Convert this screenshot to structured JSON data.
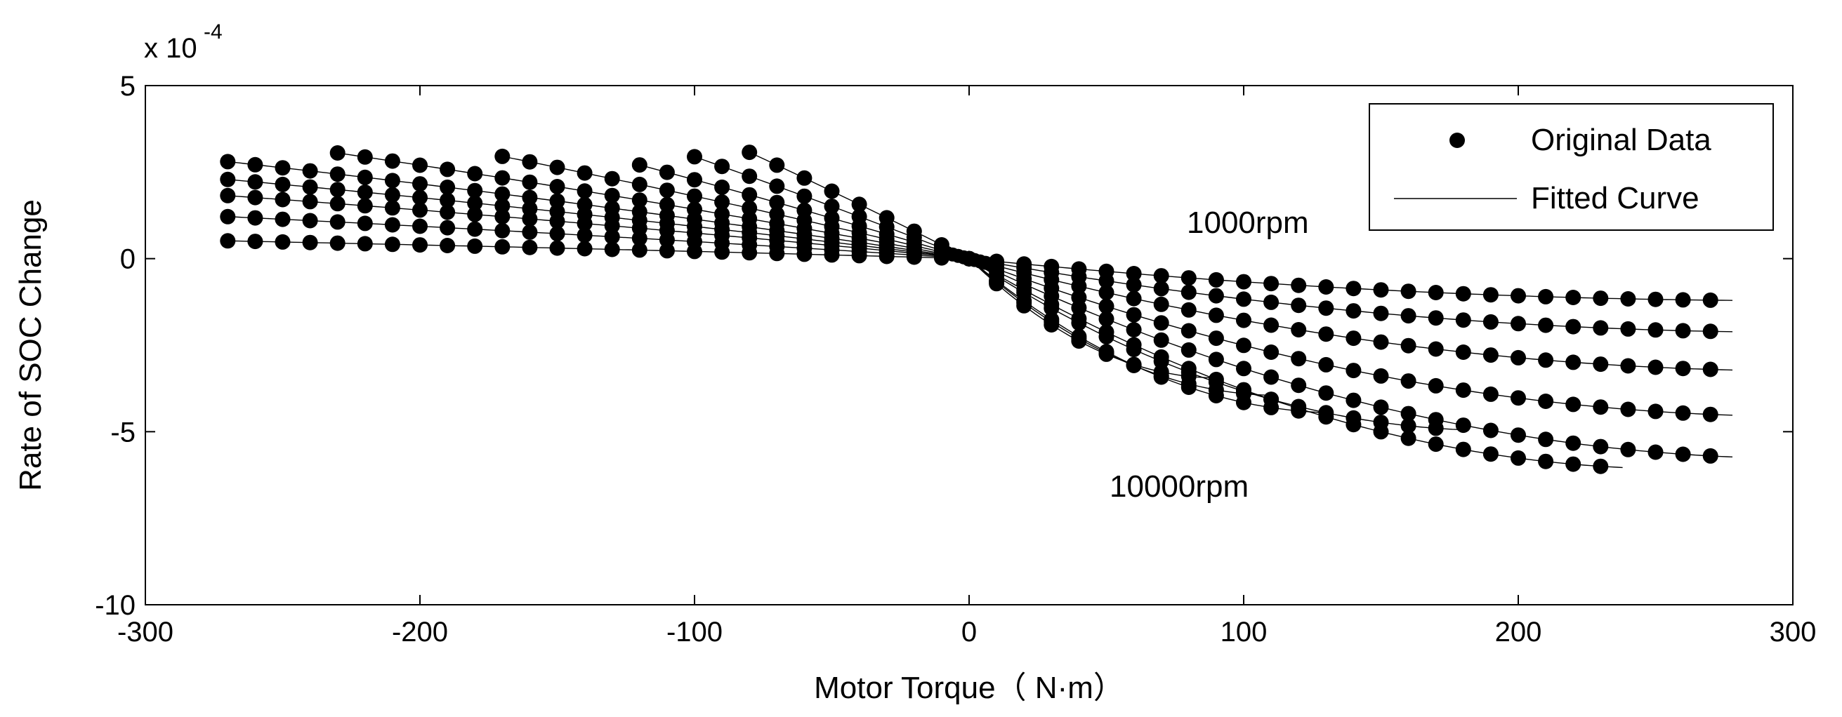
{
  "chart_data": {
    "type": "scatter",
    "xlabel": "Motor Torque（ N·m）",
    "ylabel": "Rate of SOC Change",
    "y_multiplier": "x 10",
    "y_exponent": "-4",
    "xlim": [
      -300,
      300
    ],
    "ylim": [
      -10,
      5
    ],
    "xticks": [
      -300,
      -200,
      -100,
      0,
      100,
      200,
      300
    ],
    "yticks": [
      -10,
      -5,
      0,
      5
    ],
    "xtick_labels": [
      "-300",
      "-200",
      "-100",
      "0",
      "100",
      "200",
      "300"
    ],
    "ytick_labels": [
      "-10",
      "-5",
      "0",
      "5"
    ],
    "grid": false,
    "legend": {
      "position": "top-right",
      "entries": [
        "Original Data",
        "Fitted Curve"
      ]
    },
    "annotations": [
      {
        "text": "1000rpm",
        "x": 105,
        "y": 0.9
      },
      {
        "text": "10000rpm",
        "x": 78,
        "y": -6.7
      }
    ],
    "series_style": {
      "marker": "circle",
      "fit_line": "thin"
    },
    "speed_curves": [
      {
        "k_neg": 0.0022,
        "x_min": -270,
        "x_max": 270
      },
      {
        "k_neg": 0.0052,
        "x_min": -270,
        "x_max": 270
      },
      {
        "k_neg": 0.0078,
        "x_min": -270,
        "x_max": 270
      },
      {
        "k_neg": 0.0098,
        "x_min": -270,
        "x_max": 270
      },
      {
        "k_neg": 0.012,
        "x_min": -270,
        "x_max": 270
      },
      {
        "k_neg": 0.015,
        "x_min": -230,
        "x_max": 230
      },
      {
        "k_neg": 0.019,
        "x_min": -170,
        "x_max": 170
      },
      {
        "k_neg": 0.024,
        "x_min": -120,
        "x_max": 120
      },
      {
        "k_neg": 0.031,
        "x_min": -100,
        "x_max": 100
      },
      {
        "k_neg": 0.04,
        "x_min": -80,
        "x_max": 80
      }
    ],
    "positive_end_values": [
      -1.2,
      -2.1,
      -3.2,
      -4.5,
      -5.7,
      -6.0,
      -4.9,
      -4.4,
      -3.9,
      -3.4
    ],
    "torque_step": 10
  },
  "colors": {
    "marker": "#000000",
    "line": "#000000",
    "axis": "#000000"
  }
}
